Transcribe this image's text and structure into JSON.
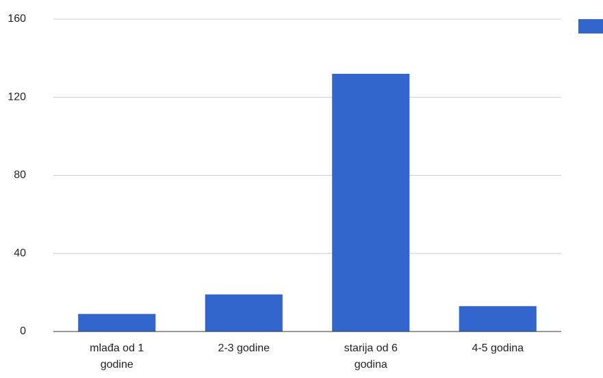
{
  "chart_data": {
    "type": "bar",
    "categories": [
      "mlađa od 1 godine",
      "2-3 godine",
      "starija od 6 godina",
      "4-5 godina"
    ],
    "values": [
      9,
      19,
      132,
      13
    ],
    "color": "#3366cc",
    "ylim": [
      0,
      160
    ],
    "yticks": [
      0,
      40,
      80,
      120,
      160
    ],
    "grid": true
  }
}
